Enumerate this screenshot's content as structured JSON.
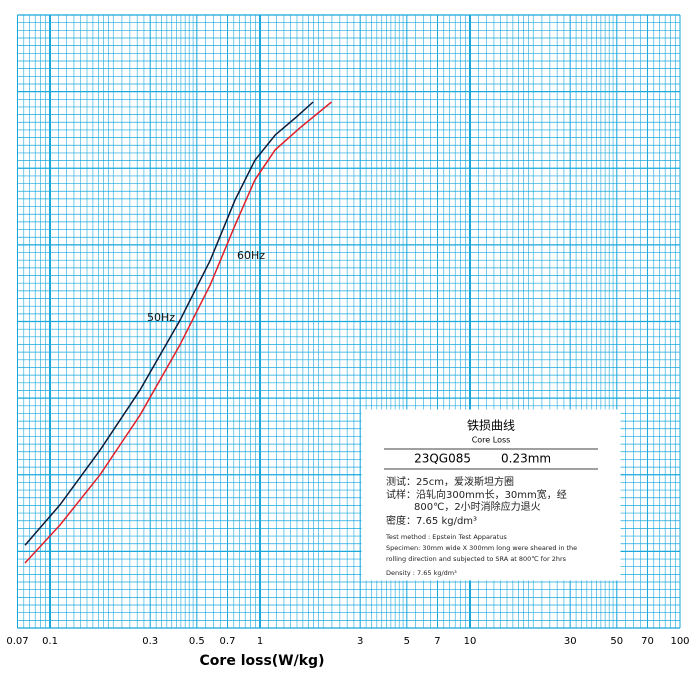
{
  "chart_data": {
    "type": "line",
    "x_label": "Core loss(W/kg)",
    "x_scale": "log",
    "xlim": [
      0.07,
      100
    ],
    "ylim": [
      0,
      1
    ],
    "xticks": [
      {
        "value": 0.07,
        "label": "0.07"
      },
      0.1,
      0.3,
      0.5,
      0.7,
      1,
      3,
      5,
      7,
      10,
      30,
      50,
      70,
      100
    ],
    "grid": true,
    "grid_color": "#19a8dc",
    "series": [
      {
        "name": "50Hz",
        "color": "#0c1a3a",
        "x": [
          0.076,
          0.1116,
          0.173,
          0.268,
          0.416,
          0.58,
          0.76,
          0.945,
          1.18,
          1.47,
          1.79
        ],
        "values": [
          0.135,
          0.201,
          0.29,
          0.388,
          0.502,
          0.6,
          0.698,
          0.763,
          0.804,
          0.832,
          0.858
        ]
      },
      {
        "name": "60Hz",
        "color": "#e0202a",
        "x": [
          0.076,
          0.1116,
          0.173,
          0.268,
          0.416,
          0.58,
          0.76,
          0.945,
          1.18,
          1.55,
          2.19
        ],
        "values": [
          0.106,
          0.168,
          0.25,
          0.347,
          0.462,
          0.56,
          0.657,
          0.731,
          0.78,
          0.816,
          0.858
        ]
      }
    ],
    "inset": {
      "title": "铁损曲线",
      "subtitle": "Core Loss",
      "grade": "23QG085",
      "thickness": "0.23mm",
      "cn_lines": [
        "测试：25cm，爱泼斯坦方圈",
        "试样：沿轧向300mm长，30mm宽，经",
        "800℃，2小时消除应力退火",
        "密度：7.65 kg/dm³"
      ],
      "en_lines": [
        "Test method : Epstein Test Apparatus",
        "Specimen: 30mm wide X 300mm long were sheared in the",
        "rolling direction and subjected to SRA at 800℃ for 2hrs",
        "Density : 7.65 kg/dm³"
      ]
    }
  }
}
